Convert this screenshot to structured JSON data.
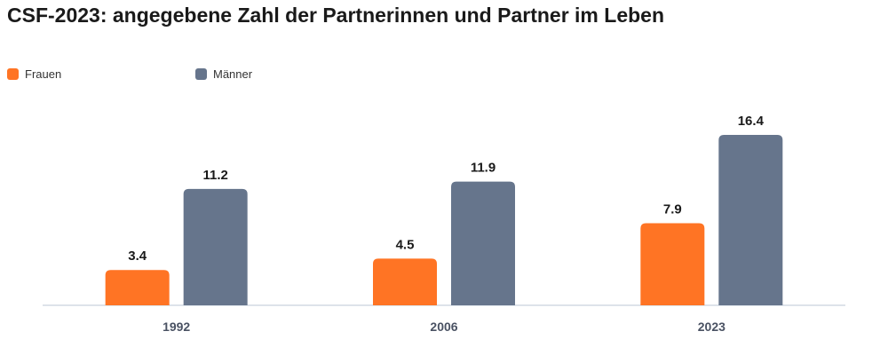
{
  "chart_data": {
    "type": "bar",
    "title": "CSF-2023: angegebene Zahl der Partnerinnen und Partner im Leben",
    "categories": [
      "1992",
      "2006",
      "2023"
    ],
    "series": [
      {
        "name": "Frauen",
        "values": [
          3.4,
          4.5,
          7.9
        ],
        "color": "#ff7424"
      },
      {
        "name": "Männer",
        "values": [
          11.2,
          11.9,
          16.4
        ],
        "color": "#66758c"
      }
    ],
    "xlabel": "",
    "ylabel": "",
    "legend_position": "top-left",
    "grid": false,
    "axis_color": "#dde3ea"
  }
}
